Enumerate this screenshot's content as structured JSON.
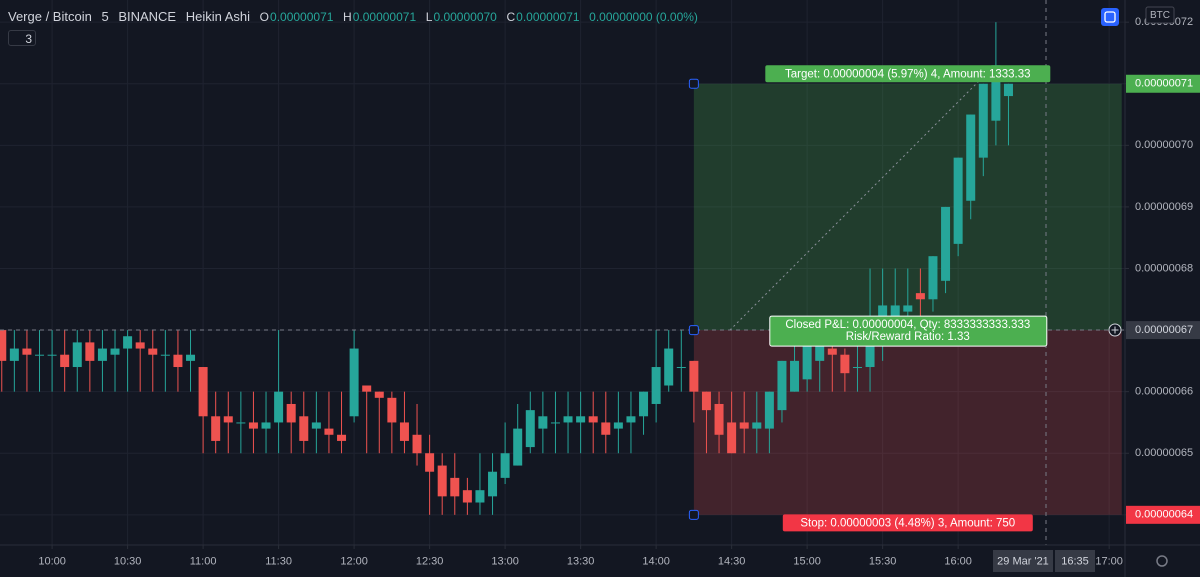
{
  "chart_data": {
    "type": "candlestick",
    "title": "Verge / Bitcoin",
    "interval": "5",
    "exchange": "BINANCE",
    "chart_style": "Heikin Ashi",
    "ohlc_legend": [
      {
        "key": "O",
        "value": "0.00000071"
      },
      {
        "key": "H",
        "value": "0.00000071"
      },
      {
        "key": "L",
        "value": "0.00000070"
      },
      {
        "key": "C",
        "value": "0.00000071"
      }
    ],
    "change": "0.00000000 (0.00%)",
    "indicator_count": "3",
    "currency": "BTC",
    "date_label": "29 Mar '21",
    "crosshair_time": "16:35",
    "up_color": "#26a69a",
    "down_color": "#ef5350",
    "grid": true,
    "xlim": [
      579.3,
      1026.3
    ],
    "ylim": [
      6.351e-07,
      7.236e-07
    ],
    "xticks": [
      {
        "value": 600,
        "label": "10:00"
      },
      {
        "value": 630,
        "label": "10:30"
      },
      {
        "value": 660,
        "label": "11:00"
      },
      {
        "value": 690,
        "label": "11:30"
      },
      {
        "value": 720,
        "label": "12:00"
      },
      {
        "value": 750,
        "label": "12:30"
      },
      {
        "value": 780,
        "label": "13:00"
      },
      {
        "value": 810,
        "label": "13:30"
      },
      {
        "value": 840,
        "label": "14:00"
      },
      {
        "value": 870,
        "label": "14:30"
      },
      {
        "value": 900,
        "label": "15:00"
      },
      {
        "value": 930,
        "label": "15:30"
      },
      {
        "value": 960,
        "label": "16:00"
      },
      {
        "value": 1020,
        "label": "17:00"
      }
    ],
    "yticks": [
      {
        "value": 6.4e-07,
        "label": "0.00000064"
      },
      {
        "value": 6.5e-07,
        "label": "0.00000065"
      },
      {
        "value": 6.6e-07,
        "label": "0.00000066"
      },
      {
        "value": 6.7e-07,
        "label": "0.00000067"
      },
      {
        "value": 6.8e-07,
        "label": "0.00000068"
      },
      {
        "value": 6.9e-07,
        "label": "0.00000069"
      },
      {
        "value": 7e-07,
        "label": "0.00000070"
      },
      {
        "value": 7.1e-07,
        "label": "0.00000071"
      },
      {
        "value": 7.2e-07,
        "label": "0.00000072"
      }
    ],
    "x": [
      580,
      585,
      590,
      595,
      600,
      605,
      610,
      615,
      620,
      625,
      630,
      635,
      640,
      645,
      650,
      655,
      660,
      665,
      670,
      675,
      680,
      685,
      690,
      695,
      700,
      705,
      710,
      715,
      720,
      725,
      730,
      735,
      740,
      745,
      750,
      755,
      760,
      765,
      770,
      775,
      780,
      785,
      790,
      795,
      800,
      805,
      810,
      815,
      820,
      825,
      830,
      835,
      840,
      845,
      850,
      855,
      860,
      865,
      870,
      875,
      880,
      885,
      890,
      895,
      900,
      905,
      910,
      915,
      920,
      925,
      930,
      935,
      940,
      945,
      950,
      955,
      960,
      965,
      970,
      975,
      980
    ],
    "open": [
      6.7e-07,
      6.65e-07,
      6.67e-07,
      6.66e-07,
      6.66e-07,
      6.66e-07,
      6.64e-07,
      6.68e-07,
      6.65e-07,
      6.66e-07,
      6.67e-07,
      6.68e-07,
      6.67e-07,
      6.66e-07,
      6.66e-07,
      6.65e-07,
      6.64e-07,
      6.56e-07,
      6.56e-07,
      6.55e-07,
      6.55e-07,
      6.54e-07,
      6.55e-07,
      6.58e-07,
      6.56e-07,
      6.54e-07,
      6.54e-07,
      6.53e-07,
      6.56e-07,
      6.61e-07,
      6.6e-07,
      6.59e-07,
      6.55e-07,
      6.53e-07,
      6.5e-07,
      6.48e-07,
      6.46e-07,
      6.44e-07,
      6.42e-07,
      6.43e-07,
      6.46e-07,
      6.48e-07,
      6.51e-07,
      6.54e-07,
      6.55e-07,
      6.55e-07,
      6.55e-07,
      6.56e-07,
      6.55e-07,
      6.54e-07,
      6.55e-07,
      6.56e-07,
      6.58e-07,
      6.61e-07,
      6.64e-07,
      6.65e-07,
      6.6e-07,
      6.58e-07,
      6.55e-07,
      6.55e-07,
      6.54e-07,
      6.54e-07,
      6.57e-07,
      6.6e-07,
      6.62e-07,
      6.65e-07,
      6.67e-07,
      6.66e-07,
      6.64e-07,
      6.64e-07,
      6.69e-07,
      6.72e-07,
      6.73e-07,
      6.76e-07,
      6.75e-07,
      6.78e-07,
      6.84e-07,
      6.91e-07,
      6.98e-07,
      7.04e-07,
      7.08e-07
    ],
    "high": [
      6.7e-07,
      6.7e-07,
      6.7e-07,
      6.7e-07,
      6.7e-07,
      6.7e-07,
      6.7e-07,
      6.7e-07,
      6.7e-07,
      6.7e-07,
      6.7e-07,
      6.7e-07,
      6.7e-07,
      6.7e-07,
      6.7e-07,
      6.7e-07,
      6.64e-07,
      6.6e-07,
      6.6e-07,
      6.6e-07,
      6.6e-07,
      6.6e-07,
      6.7e-07,
      6.6e-07,
      6.6e-07,
      6.6e-07,
      6.6e-07,
      6.6e-07,
      6.7e-07,
      6.61e-07,
      6.6e-07,
      6.6e-07,
      6.6e-07,
      6.58e-07,
      6.53e-07,
      6.5e-07,
      6.5e-07,
      6.46e-07,
      6.5e-07,
      6.5e-07,
      6.55e-07,
      6.58e-07,
      6.6e-07,
      6.6e-07,
      6.6e-07,
      6.6e-07,
      6.6e-07,
      6.6e-07,
      6.6e-07,
      6.6e-07,
      6.6e-07,
      6.6e-07,
      6.7e-07,
      6.7e-07,
      6.7e-07,
      6.65e-07,
      6.6e-07,
      6.6e-07,
      6.6e-07,
      6.6e-07,
      6.6e-07,
      6.6e-07,
      6.65e-07,
      6.7e-07,
      6.7e-07,
      6.7e-07,
      6.7e-07,
      6.67e-07,
      6.7e-07,
      6.8e-07,
      6.8e-07,
      6.8e-07,
      6.8e-07,
      6.8e-07,
      6.82e-07,
      6.9e-07,
      6.98e-07,
      7.05e-07,
      7.1e-07,
      7.2e-07,
      7.1e-07
    ],
    "low": [
      6.6e-07,
      6.6e-07,
      6.6e-07,
      6.6e-07,
      6.6e-07,
      6.6e-07,
      6.6e-07,
      6.6e-07,
      6.6e-07,
      6.6e-07,
      6.6e-07,
      6.6e-07,
      6.6e-07,
      6.6e-07,
      6.6e-07,
      6.6e-07,
      6.5e-07,
      6.5e-07,
      6.5e-07,
      6.5e-07,
      6.5e-07,
      6.5e-07,
      6.5e-07,
      6.5e-07,
      6.5e-07,
      6.5e-07,
      6.5e-07,
      6.5e-07,
      6.55e-07,
      6.5e-07,
      6.5e-07,
      6.5e-07,
      6.5e-07,
      6.48e-07,
      6.4e-07,
      6.4e-07,
      6.4e-07,
      6.4e-07,
      6.4e-07,
      6.4e-07,
      6.45e-07,
      6.48e-07,
      6.5e-07,
      6.5e-07,
      6.5e-07,
      6.5e-07,
      6.5e-07,
      6.5e-07,
      6.5e-07,
      6.5e-07,
      6.5e-07,
      6.53e-07,
      6.55e-07,
      6.6e-07,
      6.6e-07,
      6.55e-07,
      6.5e-07,
      6.5e-07,
      6.5e-07,
      6.5e-07,
      6.5e-07,
      6.5e-07,
      6.55e-07,
      6.6e-07,
      6.6e-07,
      6.6e-07,
      6.6e-07,
      6.6e-07,
      6.6e-07,
      6.6e-07,
      6.65e-07,
      6.7e-07,
      6.7e-07,
      6.72e-07,
      6.73e-07,
      6.76e-07,
      6.82e-07,
      6.88e-07,
      6.95e-07,
      7e-07,
      7e-07
    ],
    "close": [
      6.65e-07,
      6.67e-07,
      6.66e-07,
      6.66e-07,
      6.66e-07,
      6.64e-07,
      6.68e-07,
      6.65e-07,
      6.67e-07,
      6.67e-07,
      6.69e-07,
      6.67e-07,
      6.66e-07,
      6.66e-07,
      6.64e-07,
      6.66e-07,
      6.56e-07,
      6.52e-07,
      6.55e-07,
      6.55e-07,
      6.54e-07,
      6.55e-07,
      6.6e-07,
      6.55e-07,
      6.52e-07,
      6.55e-07,
      6.53e-07,
      6.52e-07,
      6.67e-07,
      6.6e-07,
      6.59e-07,
      6.55e-07,
      6.52e-07,
      6.5e-07,
      6.47e-07,
      6.43e-07,
      6.43e-07,
      6.42e-07,
      6.44e-07,
      6.47e-07,
      6.5e-07,
      6.54e-07,
      6.57e-07,
      6.56e-07,
      6.55e-07,
      6.56e-07,
      6.56e-07,
      6.55e-07,
      6.53e-07,
      6.55e-07,
      6.56e-07,
      6.6e-07,
      6.64e-07,
      6.67e-07,
      6.64e-07,
      6.6e-07,
      6.57e-07,
      6.53e-07,
      6.5e-07,
      6.54e-07,
      6.55e-07,
      6.6e-07,
      6.65e-07,
      6.65e-07,
      6.68e-07,
      6.68e-07,
      6.66e-07,
      6.63e-07,
      6.64e-07,
      6.68e-07,
      6.74e-07,
      6.74e-07,
      6.74e-07,
      6.75e-07,
      6.82e-07,
      6.9e-07,
      6.98e-07,
      7.05e-07,
      7.1e-07,
      7.13e-07,
      7.1e-07
    ],
    "position": {
      "entry": 6.7e-07,
      "target": 7.1e-07,
      "stop": 6.4e-07,
      "start": 855,
      "end": 1025,
      "target_label": "Target: 0.00000004 (5.97%) 4, Amount: 1333.33",
      "pnl_label": "Closed P&L: 0.00000004, Qty: 8333333333.333",
      "ratio_label": "Risk/Reward Ratio: 1.33",
      "stop_label": "Stop: 0.00000003 (4.48%) 3, Amount: 750",
      "target_tag": "0.00000071",
      "entry_tag": "0.00000067",
      "stop_tag": "0.00000064"
    }
  }
}
